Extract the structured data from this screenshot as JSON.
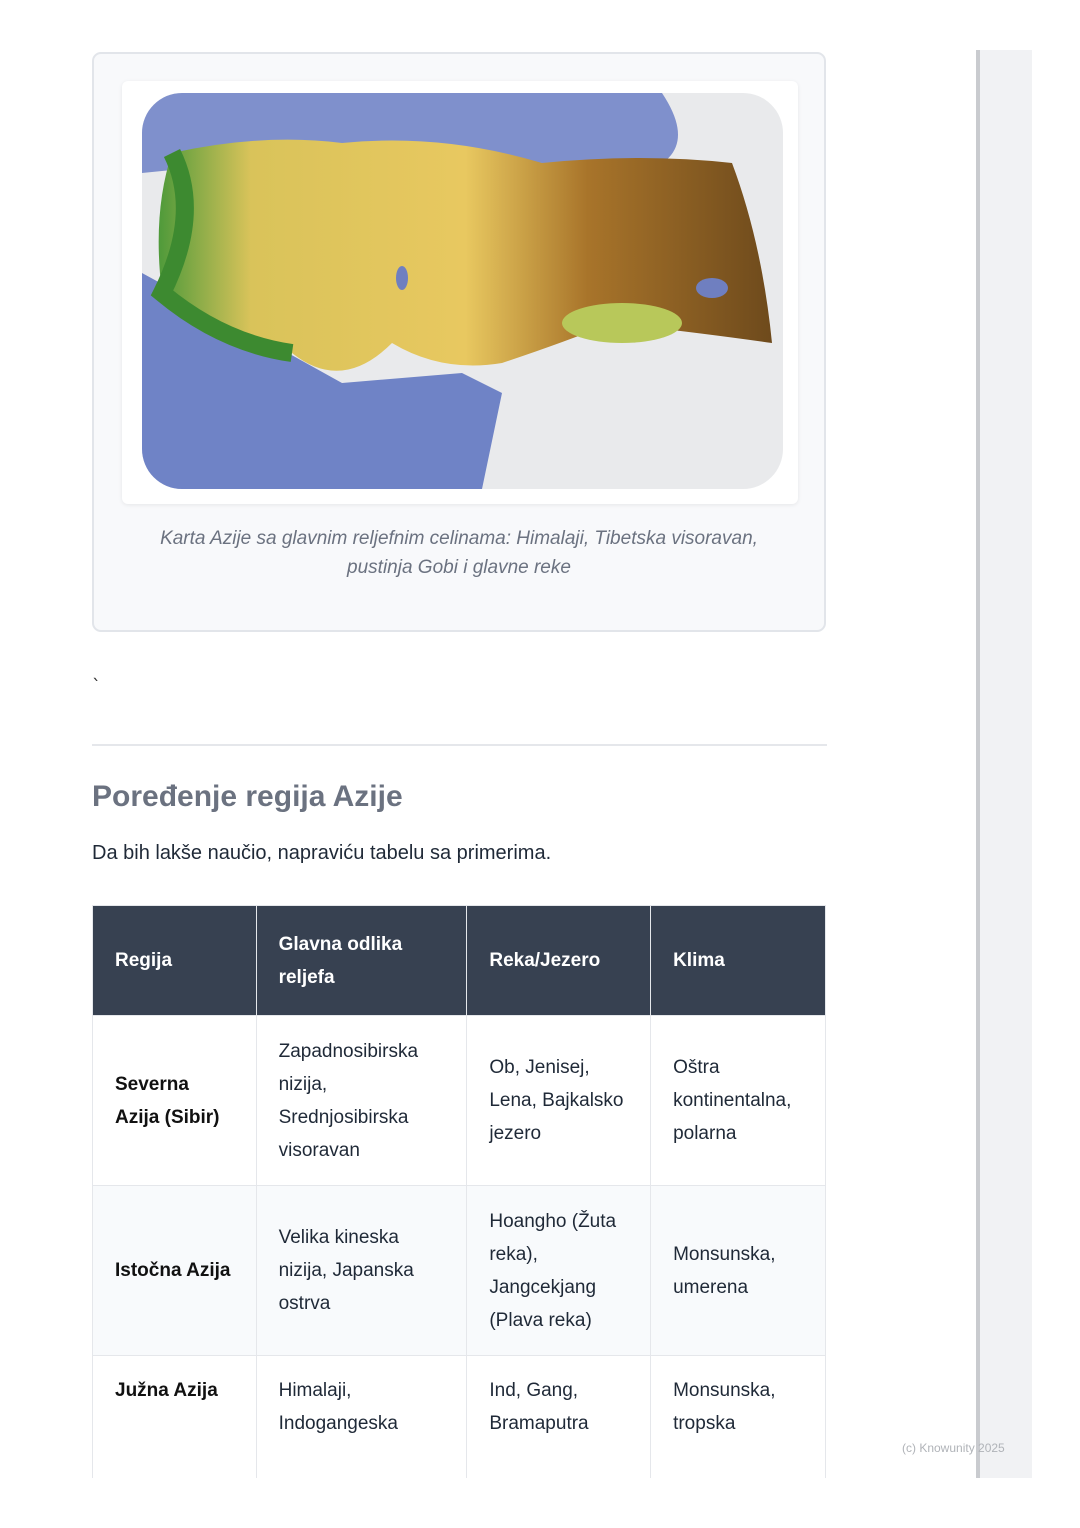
{
  "figure": {
    "caption": "Karta Azije sa glavnim reljefnim celinama: Himalaji, Tibetska visoravan, pustinja Gobi i glavne reke"
  },
  "stray_char": "`",
  "section": {
    "title": "Poređenje regija Azije",
    "intro": "Da bih lakše naučio, napraviću tabelu sa primerima."
  },
  "table": {
    "headers": [
      "Regija",
      "Glavna odlika reljefa",
      "Reka/Jezero",
      "Klima"
    ],
    "rows": [
      [
        "Severna Azija (Sibir)",
        "Zapadnosibirska nizija, Srednjosibirska visoravan",
        "Ob, Jenisej, Lena, Bajkalsko jezero",
        "Oštra kontinentalna, polarna"
      ],
      [
        "Istočna Azija",
        "Velika kineska nizija, Japanska ostrva",
        "Hoangho (Žuta reka), Jangcekjang (Plava reka)",
        "Monsunska, umerena"
      ],
      [
        "Južna Azija",
        "Himalaji, Indogangeska",
        "Ind, Gang, Bramaputra",
        "Monsunska, tropska"
      ]
    ]
  },
  "footer": {
    "copyright": "(c) Knowunity 2025"
  },
  "colors": {
    "header_bg": "#374151",
    "heading": "#6b7280"
  }
}
